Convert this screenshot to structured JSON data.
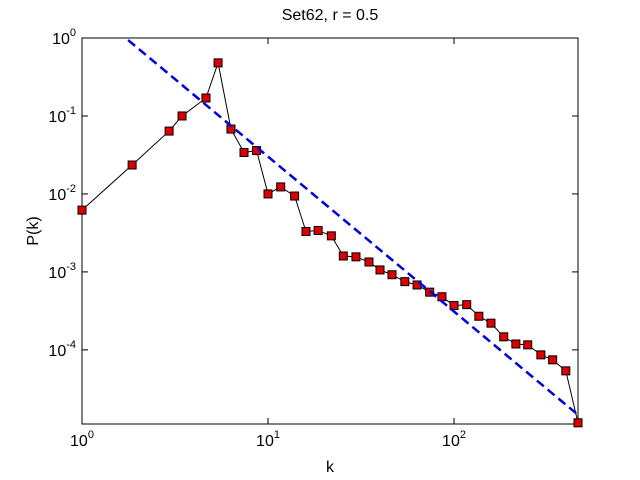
{
  "chart_data": {
    "type": "line",
    "title": "Set62, r = 0.5",
    "x_label": "k",
    "y_label": "P(k)",
    "xscale": "log",
    "yscale": "log",
    "xlim": [
      1,
      464
    ],
    "ylim": [
      1.12e-05,
      1
    ],
    "xticks": [
      {
        "value": 1,
        "label": "10",
        "exponent": "0"
      },
      {
        "value": 10,
        "label": "10",
        "exponent": "1"
      },
      {
        "value": 100,
        "label": "10",
        "exponent": "2"
      }
    ],
    "yticks": [
      {
        "value": 0.0001,
        "label": "10",
        "exponent": "-4"
      },
      {
        "value": 0.001,
        "label": "10",
        "exponent": "-3"
      },
      {
        "value": 0.01,
        "label": "10",
        "exponent": "-2"
      },
      {
        "value": 0.1,
        "label": "10",
        "exponent": "-1"
      },
      {
        "value": 1,
        "label": "10",
        "exponent": "0"
      }
    ],
    "series": [
      {
        "color": "#000000",
        "marker_color": "#dd0000",
        "style": "solid",
        "x": [
          1,
          1.86,
          2.94,
          3.45,
          4.64,
          5.39,
          6.32,
          7.43,
          8.68,
          10,
          11.7,
          13.9,
          16,
          18.6,
          21.9,
          25.4,
          29.7,
          34.9,
          40,
          46.4,
          54.4,
          63.3,
          74,
          86.1,
          100,
          117,
          136,
          158,
          185,
          215,
          249,
          293,
          339,
          399,
          464
        ],
        "values": [
          0.0062,
          0.0235,
          0.064,
          0.1,
          0.17,
          0.48,
          0.068,
          0.034,
          0.036,
          0.01,
          0.0123,
          0.0094,
          0.0033,
          0.0034,
          0.0029,
          0.0016,
          0.00156,
          0.00134,
          0.00106,
          0.00092,
          0.00075,
          0.00068,
          0.00055,
          0.00048,
          0.00037,
          0.00038,
          0.00027,
          0.00022,
          0.000147,
          0.000119,
          0.000116,
          8.63e-05,
          7.45e-05,
          5.38e-05,
          1.16e-05
        ]
      },
      {
        "color": "#0000dd",
        "style": "dashed",
        "x": [
          1.77,
          464
        ],
        "values": [
          0.94,
          1.47e-05
        ]
      }
    ]
  }
}
